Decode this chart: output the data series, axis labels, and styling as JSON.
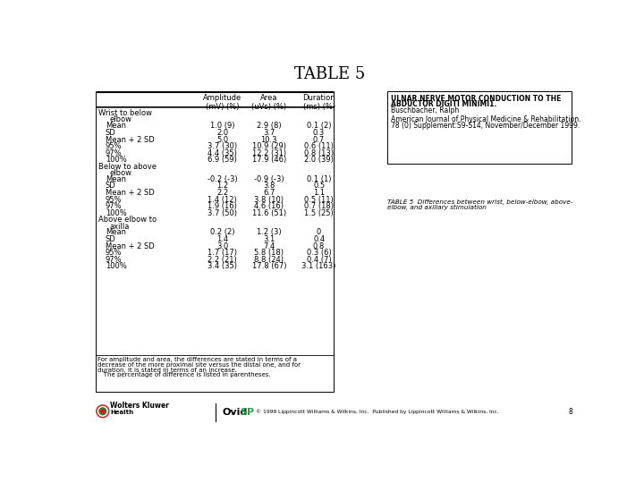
{
  "title": "TABLE 5",
  "bg_color": "#ffffff",
  "title_fontsize": 13,
  "col_headers": [
    "",
    "Amplitude\n(mV) (%)",
    "Area\n(uVs) (%)",
    "Duration\n(ms) (%)"
  ],
  "section1_header": "Wrist to below\nelbow",
  "section1_rows": [
    [
      "Mean",
      "1.0 (9)",
      "2.9 (8)",
      "0.1 (2)"
    ],
    [
      "SD",
      "2.0",
      "3.7",
      "0.3"
    ],
    [
      "Mean + 2 SD",
      "5.0",
      "10.3",
      "0.7"
    ],
    [
      "95%",
      "3.7 (30)",
      "10.9 (29)",
      "0.6 (11)"
    ],
    [
      "97%",
      "4.4 (35)",
      "12.2 (31)",
      "0.8 (13)"
    ],
    [
      "100%",
      "6.9 (59)",
      "17.9 (46)",
      "2.0 (39)"
    ]
  ],
  "section2_header": "Below to above\nelbow",
  "section2_rows": [
    [
      "Mean",
      "-0.2 (-3)",
      "-0.9 (-3)",
      "0.1 (1)"
    ],
    [
      "SD",
      "1.2",
      "3.8",
      "0.5"
    ],
    [
      "Mean + 2 SD",
      "2.2",
      "6.7",
      "1.1"
    ],
    [
      "95%",
      "1.4 (12)",
      "3.8 (10)",
      "0.5 (11)"
    ],
    [
      "97%",
      "1.9 (16)",
      "4.6 (16)",
      "0.7 (18)"
    ],
    [
      "100%",
      "3.7 (50)",
      "11.6 (51)",
      "1.5 (25)"
    ]
  ],
  "section3_header": "Above elbow to\naxilla",
  "section3_rows": [
    [
      "Mean",
      "0.2 (2)",
      "1.2 (3)",
      "0"
    ],
    [
      "SD",
      "1.4",
      "3.1",
      "0.4"
    ],
    [
      "Mean + 2 SD",
      "3.0",
      "7.4",
      "0.8"
    ],
    [
      "95%",
      "1.7 (17)",
      "5.8 (18)",
      "0.3 (6)"
    ],
    [
      "97%",
      "2.2 (21)",
      "8.8 (24)",
      "0.4 (7)"
    ],
    [
      "100%",
      "3.4 (35)",
      "17.8 (67)",
      "3.1 (163)"
    ]
  ],
  "footnote_lines": [
    "For amplitude and area, the differences are stated in terms of a",
    "decrease of the more proximal site versus the distal one, and for",
    "duration, it is stated in terms of an increase.",
    "   The percentage of difference is listed in parentheses."
  ],
  "ref_box_line1": "ULNAR NERVE MOTOR CONDUCTION TO THE",
  "ref_box_line2": "ABDUCTOR DIGITI MINIMI1.",
  "ref_box_line3": "Buschbacher, Ralph",
  "ref_box_line4": "American Journal of Physical Medicine & Rehabilitation.",
  "ref_box_line5": "78 (0) Supplement:S9-S14, November/December 1999.",
  "ref2_line1": "TABLE 5  Differences between wrist, below-elbow, above-",
  "ref2_line2": "elbow, and axillary stimulation",
  "footer_copyright": "© 1999 Lippincott Williams & Wilkins, Inc.  Published by Lippincott Williams & Wilkins, Inc.",
  "footer_page": "8"
}
